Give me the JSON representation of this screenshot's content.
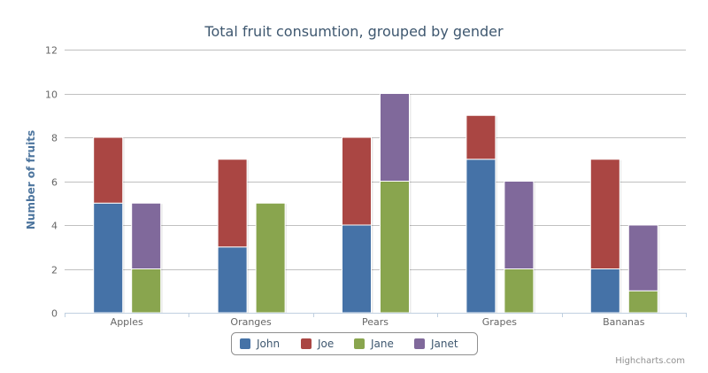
{
  "chart_data": {
    "type": "bar",
    "stacked": true,
    "grouped_by": "gender",
    "title": "Total fruit consumtion, grouped by gender",
    "xlabel": "",
    "ylabel": "Number of fruits",
    "ylim": [
      0,
      12
    ],
    "yticks": [
      0,
      2,
      4,
      6,
      8,
      10,
      12
    ],
    "categories": [
      "Apples",
      "Oranges",
      "Pears",
      "Grapes",
      "Bananas"
    ],
    "stacks": [
      "male",
      "female"
    ],
    "series": [
      {
        "name": "John",
        "stack": "male",
        "color": "#4572A7",
        "values": [
          5,
          3,
          4,
          7,
          2
        ]
      },
      {
        "name": "Joe",
        "stack": "male",
        "color": "#AA4643",
        "values": [
          3,
          4,
          4,
          2,
          5
        ]
      },
      {
        "name": "Jane",
        "stack": "female",
        "color": "#89A54E",
        "values": [
          2,
          5,
          6,
          2,
          1
        ]
      },
      {
        "name": "Janet",
        "stack": "female",
        "color": "#80699B",
        "values": [
          3,
          0,
          4,
          4,
          3
        ]
      }
    ],
    "grid": true,
    "legend_placement": "bottom-center"
  },
  "credits": "Highcharts.com",
  "colors": {
    "title": "#3E576F",
    "axis_label": "#4d759e",
    "tick_label": "#666666",
    "grid": "#C0C0C0",
    "axis_line": "#C0D0E0",
    "legend_border": "#909090",
    "credits": "#909090"
  }
}
